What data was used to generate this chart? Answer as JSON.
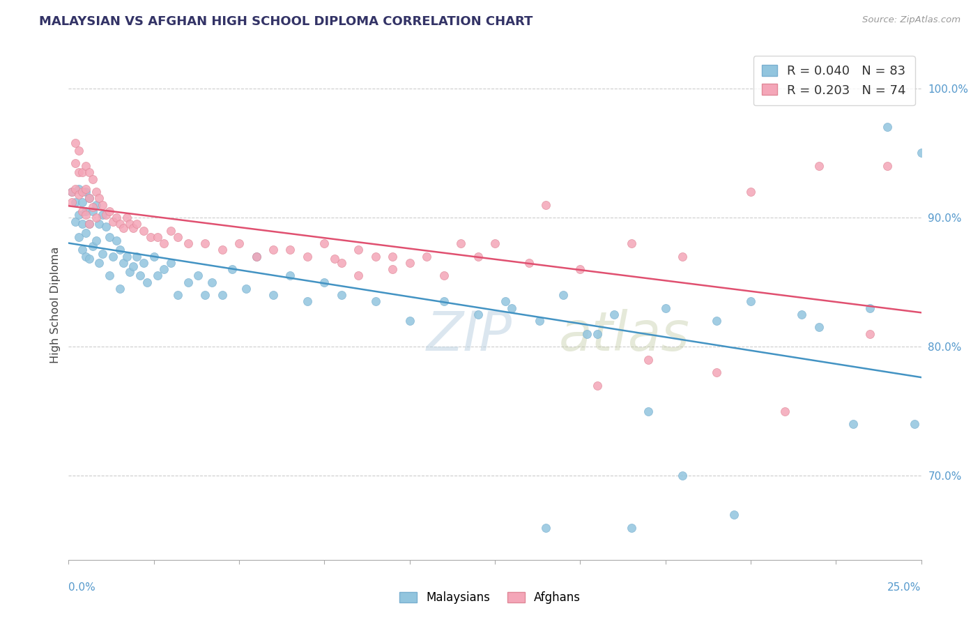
{
  "title": "MALAYSIAN VS AFGHAN HIGH SCHOOL DIPLOMA CORRELATION CHART",
  "source": "Source: ZipAtlas.com",
  "ylabel": "High School Diploma",
  "x_min": 0.0,
  "x_max": 0.25,
  "y_min": 0.635,
  "y_max": 1.03,
  "right_ytick_values": [
    0.7,
    0.8,
    0.9,
    1.0
  ],
  "right_ytick_labels": [
    "70.0%",
    "80.0%",
    "90.0%",
    "100.0%"
  ],
  "blue_color": "#92c5de",
  "pink_color": "#f4a6b8",
  "blue_line_color": "#4393c3",
  "pink_line_color": "#e05070",
  "blue_R": 0.04,
  "blue_N": 83,
  "pink_R": 0.203,
  "pink_N": 74,
  "watermark": "ZIPatlas",
  "blue_x": [
    0.001,
    0.002,
    0.002,
    0.003,
    0.003,
    0.003,
    0.004,
    0.004,
    0.004,
    0.005,
    0.005,
    0.005,
    0.005,
    0.006,
    0.006,
    0.006,
    0.007,
    0.007,
    0.008,
    0.008,
    0.009,
    0.009,
    0.01,
    0.01,
    0.011,
    0.012,
    0.012,
    0.013,
    0.014,
    0.015,
    0.015,
    0.016,
    0.017,
    0.018,
    0.019,
    0.02,
    0.021,
    0.022,
    0.023,
    0.025,
    0.026,
    0.028,
    0.03,
    0.032,
    0.035,
    0.038,
    0.04,
    0.042,
    0.045,
    0.048,
    0.052,
    0.055,
    0.06,
    0.065,
    0.07,
    0.075,
    0.08,
    0.09,
    0.1,
    0.11,
    0.12,
    0.13,
    0.145,
    0.16,
    0.175,
    0.19,
    0.2,
    0.215,
    0.23,
    0.22,
    0.195,
    0.17,
    0.155,
    0.14,
    0.24,
    0.25,
    0.235,
    0.248,
    0.18,
    0.165,
    0.152,
    0.138,
    0.128
  ],
  "blue_y": [
    0.92,
    0.912,
    0.897,
    0.922,
    0.902,
    0.885,
    0.912,
    0.895,
    0.875,
    0.92,
    0.905,
    0.888,
    0.87,
    0.915,
    0.895,
    0.868,
    0.905,
    0.878,
    0.91,
    0.882,
    0.895,
    0.865,
    0.902,
    0.872,
    0.893,
    0.885,
    0.855,
    0.87,
    0.882,
    0.875,
    0.845,
    0.865,
    0.87,
    0.858,
    0.862,
    0.87,
    0.855,
    0.865,
    0.85,
    0.87,
    0.855,
    0.86,
    0.865,
    0.84,
    0.85,
    0.855,
    0.84,
    0.85,
    0.84,
    0.86,
    0.845,
    0.87,
    0.84,
    0.855,
    0.835,
    0.85,
    0.84,
    0.835,
    0.82,
    0.835,
    0.825,
    0.83,
    0.84,
    0.825,
    0.83,
    0.82,
    0.835,
    0.825,
    0.74,
    0.815,
    0.67,
    0.75,
    0.81,
    0.66,
    0.97,
    0.95,
    0.83,
    0.74,
    0.7,
    0.66,
    0.81,
    0.82,
    0.835
  ],
  "pink_x": [
    0.001,
    0.001,
    0.002,
    0.002,
    0.002,
    0.003,
    0.003,
    0.003,
    0.004,
    0.004,
    0.004,
    0.005,
    0.005,
    0.005,
    0.006,
    0.006,
    0.006,
    0.007,
    0.007,
    0.008,
    0.008,
    0.009,
    0.01,
    0.011,
    0.012,
    0.013,
    0.014,
    0.015,
    0.016,
    0.017,
    0.018,
    0.019,
    0.02,
    0.022,
    0.024,
    0.026,
    0.028,
    0.03,
    0.032,
    0.035,
    0.04,
    0.045,
    0.05,
    0.055,
    0.06,
    0.065,
    0.07,
    0.075,
    0.08,
    0.085,
    0.09,
    0.095,
    0.1,
    0.11,
    0.12,
    0.135,
    0.15,
    0.165,
    0.18,
    0.2,
    0.22,
    0.24,
    0.235,
    0.21,
    0.19,
    0.17,
    0.155,
    0.14,
    0.125,
    0.115,
    0.105,
    0.095,
    0.085,
    0.078
  ],
  "pink_y": [
    0.92,
    0.912,
    0.958,
    0.942,
    0.922,
    0.952,
    0.935,
    0.918,
    0.935,
    0.92,
    0.905,
    0.94,
    0.922,
    0.902,
    0.935,
    0.915,
    0.895,
    0.93,
    0.908,
    0.92,
    0.9,
    0.915,
    0.91,
    0.902,
    0.905,
    0.897,
    0.9,
    0.895,
    0.892,
    0.9,
    0.895,
    0.892,
    0.895,
    0.89,
    0.885,
    0.885,
    0.88,
    0.89,
    0.885,
    0.88,
    0.88,
    0.875,
    0.88,
    0.87,
    0.875,
    0.875,
    0.87,
    0.88,
    0.865,
    0.875,
    0.87,
    0.87,
    0.865,
    0.855,
    0.87,
    0.865,
    0.86,
    0.88,
    0.87,
    0.92,
    0.94,
    0.94,
    0.81,
    0.75,
    0.78,
    0.79,
    0.77,
    0.91,
    0.88,
    0.88,
    0.87,
    0.86,
    0.855,
    0.868
  ]
}
